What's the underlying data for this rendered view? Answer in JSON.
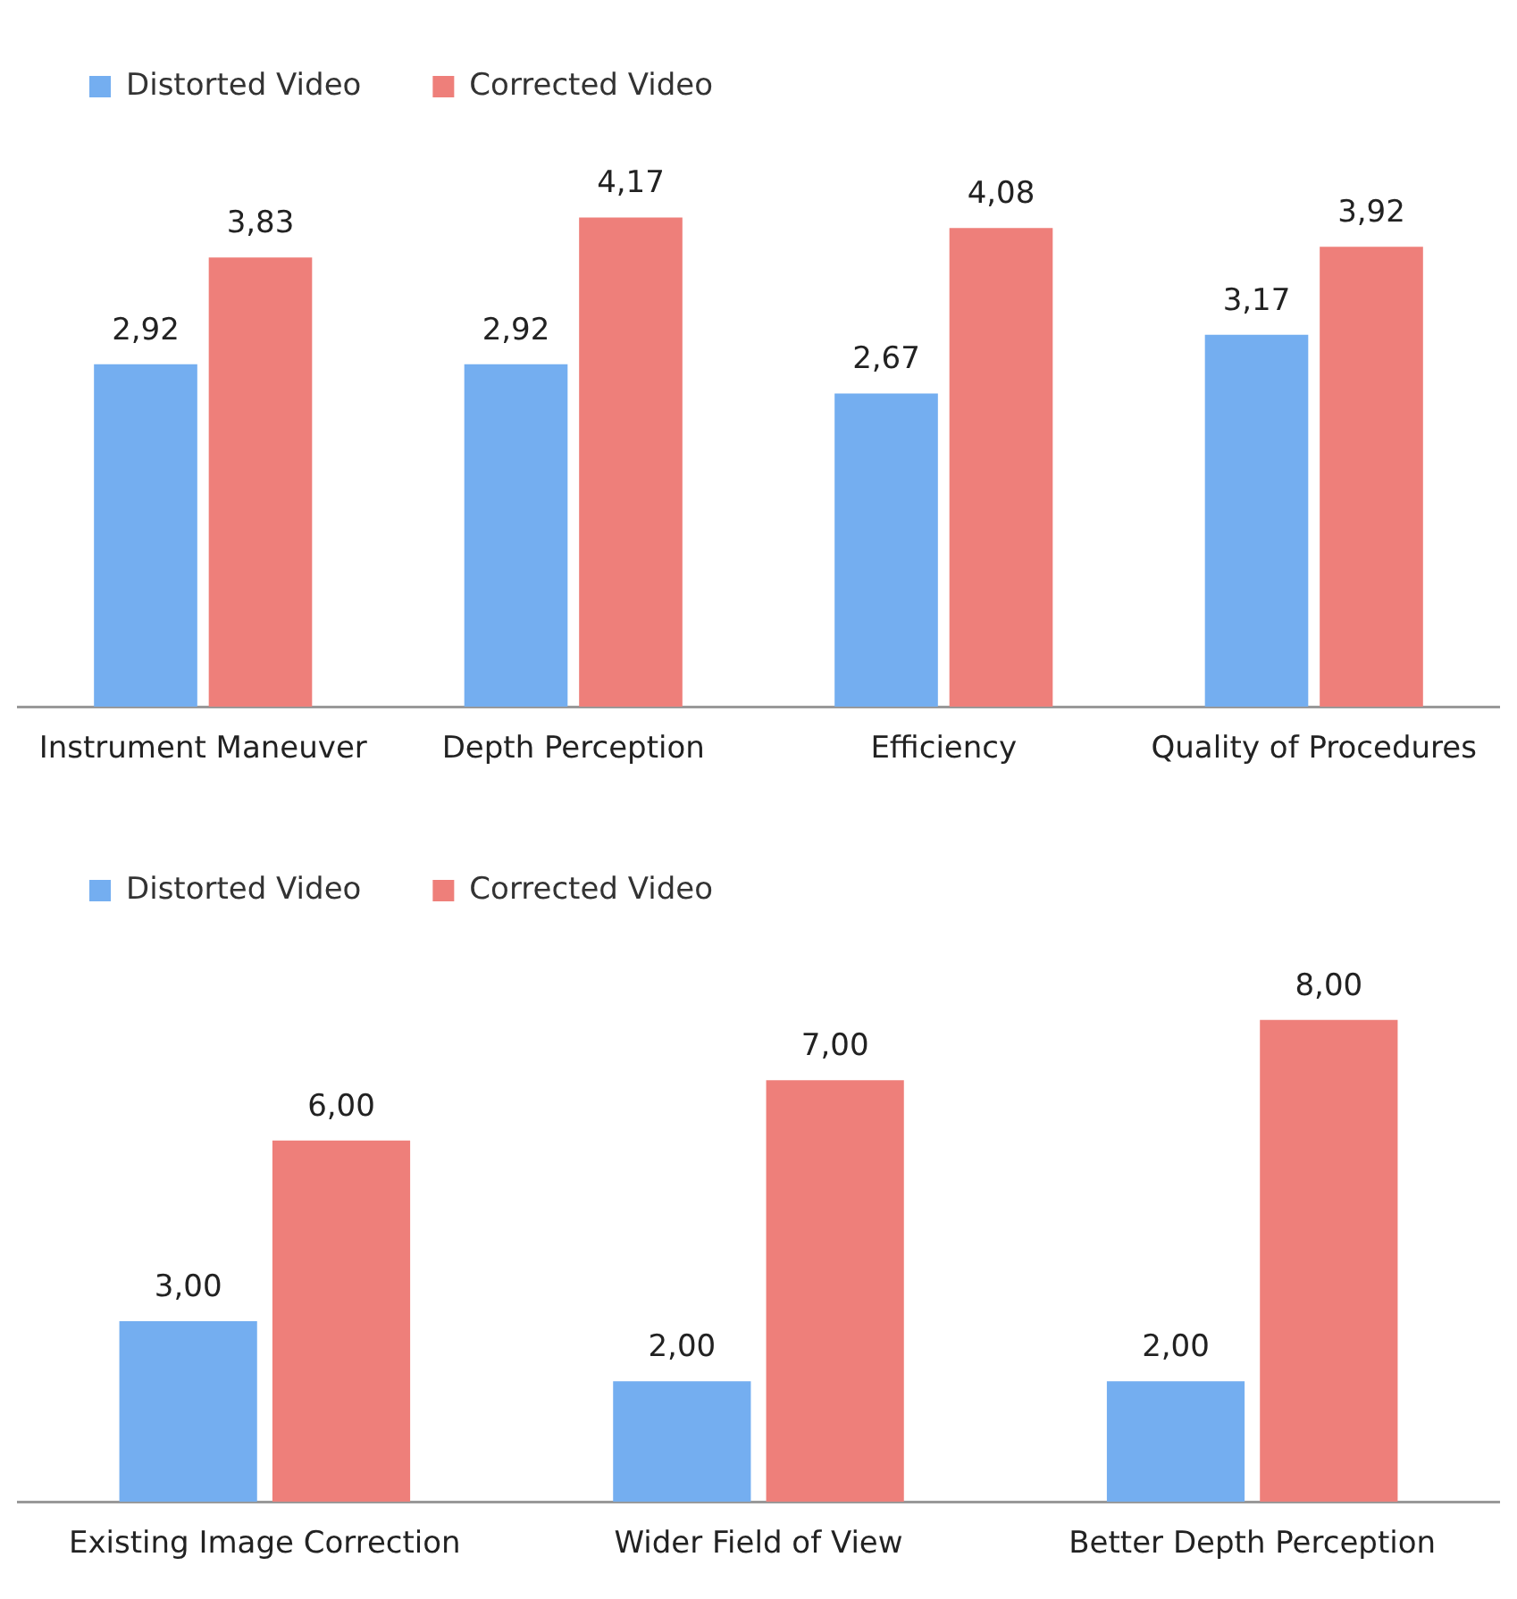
{
  "chart_data": [
    {
      "type": "bar",
      "categories": [
        "Instrument Maneuver",
        "Depth Perception",
        "Efficiency",
        "Quality of Procedures"
      ],
      "legend": "top",
      "grid": false,
      "series": [
        {
          "name": "Distorted Video",
          "color": "#74aef0",
          "values": [
            2.92,
            2.92,
            2.67,
            3.17
          ],
          "value_labels": [
            "2,92",
            "2,92",
            "2,67",
            "3,17"
          ]
        },
        {
          "name": "Corrected Video",
          "color": "#ee7f7a",
          "values": [
            3.83,
            4.17,
            4.08,
            3.92
          ],
          "value_labels": [
            "3,83",
            "4,17",
            "4,08",
            "3,92"
          ]
        }
      ]
    },
    {
      "type": "bar",
      "categories": [
        "Existing Image Correction",
        "Wider Field of View",
        "Better Depth Perception"
      ],
      "legend": "top",
      "grid": false,
      "series": [
        {
          "name": "Distorted Video",
          "color": "#74aef0",
          "values": [
            3.0,
            2.0,
            2.0
          ],
          "value_labels": [
            "3,00",
            "2,00",
            "2,00"
          ]
        },
        {
          "name": "Corrected Video",
          "color": "#ee7f7a",
          "values": [
            6.0,
            7.0,
            8.0
          ],
          "value_labels": [
            "6,00",
            "7,00",
            "8,00"
          ]
        }
      ]
    }
  ]
}
